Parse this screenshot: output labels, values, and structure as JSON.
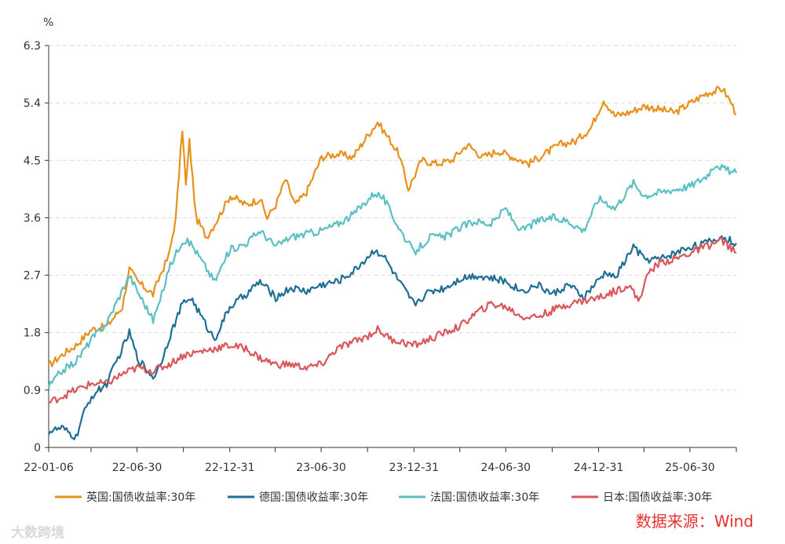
{
  "chart_data": {
    "type": "line",
    "unit_label": "%",
    "ylim": [
      0,
      6.3
    ],
    "y_ticks": [
      "0",
      "0.9",
      "1.8",
      "2.7",
      "3.6",
      "4.5",
      "5.4",
      "6.3"
    ],
    "x_ticks": [
      "22-01-06",
      "22-06-30",
      "22-12-31",
      "23-06-30",
      "23-12-31",
      "24-06-30",
      "24-12-31",
      "25-06-30"
    ],
    "x_start": "2022-01-06",
    "x_end": "2025-09-30",
    "grid": "horizontal-dashed",
    "legend_position": "bottom",
    "series": [
      {
        "name": "英国:国债收益率:30年",
        "color": "#E8901C",
        "points": [
          [
            "2022-01-06",
            1.28
          ],
          [
            "2022-02-01",
            1.45
          ],
          [
            "2022-03-01",
            1.6
          ],
          [
            "2022-04-01",
            1.85
          ],
          [
            "2022-05-01",
            1.9
          ],
          [
            "2022-06-01",
            2.2
          ],
          [
            "2022-06-15",
            2.8
          ],
          [
            "2022-07-01",
            2.6
          ],
          [
            "2022-08-01",
            2.4
          ],
          [
            "2022-08-15",
            2.7
          ],
          [
            "2022-09-01",
            3.0
          ],
          [
            "2022-09-15",
            3.6
          ],
          [
            "2022-09-28",
            5.0
          ],
          [
            "2022-10-05",
            4.1
          ],
          [
            "2022-10-12",
            4.8
          ],
          [
            "2022-10-25",
            3.6
          ],
          [
            "2022-11-15",
            3.3
          ],
          [
            "2022-12-01",
            3.5
          ],
          [
            "2022-12-15",
            3.7
          ],
          [
            "2023-01-01",
            3.95
          ],
          [
            "2023-02-01",
            3.8
          ],
          [
            "2023-03-01",
            3.9
          ],
          [
            "2023-03-15",
            3.6
          ],
          [
            "2023-04-01",
            3.8
          ],
          [
            "2023-04-20",
            4.2
          ],
          [
            "2023-05-10",
            3.8
          ],
          [
            "2023-06-01",
            4.0
          ],
          [
            "2023-07-01",
            4.55
          ],
          [
            "2023-08-01",
            4.6
          ],
          [
            "2023-09-01",
            4.55
          ],
          [
            "2023-10-01",
            4.9
          ],
          [
            "2023-10-20",
            5.1
          ],
          [
            "2023-11-15",
            4.8
          ],
          [
            "2023-12-01",
            4.6
          ],
          [
            "2023-12-20",
            4.05
          ],
          [
            "2024-01-15",
            4.5
          ],
          [
            "2024-02-15",
            4.45
          ],
          [
            "2024-03-15",
            4.5
          ],
          [
            "2024-04-15",
            4.75
          ],
          [
            "2024-05-15",
            4.55
          ],
          [
            "2024-06-15",
            4.65
          ],
          [
            "2024-07-15",
            4.55
          ],
          [
            "2024-08-15",
            4.45
          ],
          [
            "2024-09-15",
            4.6
          ],
          [
            "2024-10-15",
            4.75
          ],
          [
            "2024-11-15",
            4.8
          ],
          [
            "2024-12-15",
            5.0
          ],
          [
            "2025-01-10",
            5.45
          ],
          [
            "2025-02-01",
            5.2
          ],
          [
            "2025-03-01",
            5.25
          ],
          [
            "2025-04-01",
            5.35
          ],
          [
            "2025-05-01",
            5.3
          ],
          [
            "2025-06-01",
            5.25
          ],
          [
            "2025-07-01",
            5.4
          ],
          [
            "2025-08-01",
            5.55
          ],
          [
            "2025-09-03",
            5.62
          ],
          [
            "2025-09-20",
            5.4
          ],
          [
            "2025-09-30",
            5.22
          ]
        ]
      },
      {
        "name": "德国:国债收益率:30年",
        "color": "#1F6E95",
        "points": [
          [
            "2022-01-06",
            0.25
          ],
          [
            "2022-02-01",
            0.3
          ],
          [
            "2022-03-01",
            0.15
          ],
          [
            "2022-03-15",
            0.5
          ],
          [
            "2022-04-01",
            0.8
          ],
          [
            "2022-05-01",
            1.0
          ],
          [
            "2022-06-15",
            1.8
          ],
          [
            "2022-07-01",
            1.4
          ],
          [
            "2022-08-01",
            1.1
          ],
          [
            "2022-08-15",
            1.3
          ],
          [
            "2022-09-01",
            1.7
          ],
          [
            "2022-09-28",
            2.25
          ],
          [
            "2022-10-15",
            2.35
          ],
          [
            "2022-11-15",
            1.9
          ],
          [
            "2022-12-01",
            1.7
          ],
          [
            "2022-12-31",
            2.2
          ],
          [
            "2023-02-01",
            2.4
          ],
          [
            "2023-03-01",
            2.6
          ],
          [
            "2023-04-01",
            2.35
          ],
          [
            "2023-05-01",
            2.5
          ],
          [
            "2023-06-01",
            2.45
          ],
          [
            "2023-07-01",
            2.55
          ],
          [
            "2023-08-01",
            2.6
          ],
          [
            "2023-09-01",
            2.75
          ],
          [
            "2023-10-15",
            3.1
          ],
          [
            "2023-11-01",
            3.0
          ],
          [
            "2023-12-01",
            2.6
          ],
          [
            "2023-12-31",
            2.25
          ],
          [
            "2024-02-01",
            2.45
          ],
          [
            "2024-03-01",
            2.5
          ],
          [
            "2024-04-01",
            2.65
          ],
          [
            "2024-05-01",
            2.7
          ],
          [
            "2024-06-01",
            2.65
          ],
          [
            "2024-07-01",
            2.6
          ],
          [
            "2024-08-01",
            2.45
          ],
          [
            "2024-09-01",
            2.55
          ],
          [
            "2024-10-01",
            2.4
          ],
          [
            "2024-11-01",
            2.55
          ],
          [
            "2024-12-01",
            2.35
          ],
          [
            "2025-01-15",
            2.75
          ],
          [
            "2025-02-01",
            2.65
          ],
          [
            "2025-03-10",
            3.15
          ],
          [
            "2025-04-01",
            2.95
          ],
          [
            "2025-05-01",
            2.95
          ],
          [
            "2025-06-01",
            3.05
          ],
          [
            "2025-07-01",
            3.15
          ],
          [
            "2025-08-01",
            3.2
          ],
          [
            "2025-09-01",
            3.3
          ],
          [
            "2025-09-30",
            3.2
          ]
        ]
      },
      {
        "name": "法国:国债收益率:30年",
        "color": "#5BBFC4",
        "points": [
          [
            "2022-01-06",
            0.95
          ],
          [
            "2022-02-01",
            1.2
          ],
          [
            "2022-03-01",
            1.35
          ],
          [
            "2022-04-01",
            1.7
          ],
          [
            "2022-05-01",
            1.95
          ],
          [
            "2022-06-15",
            2.7
          ],
          [
            "2022-07-01",
            2.45
          ],
          [
            "2022-08-01",
            2.0
          ],
          [
            "2022-08-15",
            2.3
          ],
          [
            "2022-09-01",
            2.8
          ],
          [
            "2022-09-28",
            3.25
          ],
          [
            "2022-10-15",
            3.2
          ],
          [
            "2022-11-15",
            2.8
          ],
          [
            "2022-12-01",
            2.6
          ],
          [
            "2022-12-31",
            3.1
          ],
          [
            "2023-02-01",
            3.2
          ],
          [
            "2023-03-01",
            3.4
          ],
          [
            "2023-04-01",
            3.15
          ],
          [
            "2023-05-01",
            3.3
          ],
          [
            "2023-06-01",
            3.35
          ],
          [
            "2023-07-01",
            3.4
          ],
          [
            "2023-08-01",
            3.5
          ],
          [
            "2023-09-01",
            3.65
          ],
          [
            "2023-10-15",
            4.0
          ],
          [
            "2023-11-01",
            3.9
          ],
          [
            "2023-12-01",
            3.45
          ],
          [
            "2023-12-31",
            3.05
          ],
          [
            "2024-02-01",
            3.3
          ],
          [
            "2024-03-01",
            3.3
          ],
          [
            "2024-04-01",
            3.45
          ],
          [
            "2024-05-01",
            3.55
          ],
          [
            "2024-06-01",
            3.5
          ],
          [
            "2024-06-30",
            3.75
          ],
          [
            "2024-07-15",
            3.55
          ],
          [
            "2024-08-01",
            3.4
          ],
          [
            "2024-09-01",
            3.55
          ],
          [
            "2024-10-01",
            3.6
          ],
          [
            "2024-11-01",
            3.55
          ],
          [
            "2024-12-01",
            3.4
          ],
          [
            "2024-12-31",
            3.9
          ],
          [
            "2025-01-15",
            3.85
          ],
          [
            "2025-02-01",
            3.75
          ],
          [
            "2025-03-10",
            4.15
          ],
          [
            "2025-04-01",
            3.95
          ],
          [
            "2025-05-01",
            4.0
          ],
          [
            "2025-06-01",
            4.05
          ],
          [
            "2025-07-01",
            4.1
          ],
          [
            "2025-08-01",
            4.25
          ],
          [
            "2025-08-20",
            4.45
          ],
          [
            "2025-09-10",
            4.35
          ],
          [
            "2025-09-30",
            4.3
          ]
        ]
      },
      {
        "name": "日本:国债收益率:30年",
        "color": "#D9575A",
        "points": [
          [
            "2022-01-06",
            0.7
          ],
          [
            "2022-02-01",
            0.8
          ],
          [
            "2022-03-01",
            0.9
          ],
          [
            "2022-04-01",
            1.0
          ],
          [
            "2022-05-01",
            1.0
          ],
          [
            "2022-06-01",
            1.15
          ],
          [
            "2022-07-01",
            1.25
          ],
          [
            "2022-08-01",
            1.2
          ],
          [
            "2022-09-01",
            1.3
          ],
          [
            "2022-10-01",
            1.45
          ],
          [
            "2022-11-01",
            1.5
          ],
          [
            "2022-12-01",
            1.55
          ],
          [
            "2022-12-31",
            1.6
          ],
          [
            "2023-02-01",
            1.55
          ],
          [
            "2023-03-01",
            1.4
          ],
          [
            "2023-04-01",
            1.3
          ],
          [
            "2023-05-01",
            1.3
          ],
          [
            "2023-06-01",
            1.25
          ],
          [
            "2023-07-01",
            1.3
          ],
          [
            "2023-08-01",
            1.55
          ],
          [
            "2023-09-01",
            1.65
          ],
          [
            "2023-10-01",
            1.75
          ],
          [
            "2023-10-20",
            1.85
          ],
          [
            "2023-11-15",
            1.7
          ],
          [
            "2023-12-31",
            1.6
          ],
          [
            "2024-02-01",
            1.7
          ],
          [
            "2024-03-01",
            1.8
          ],
          [
            "2024-04-01",
            1.9
          ],
          [
            "2024-05-01",
            2.1
          ],
          [
            "2024-06-01",
            2.25
          ],
          [
            "2024-07-01",
            2.2
          ],
          [
            "2024-08-01",
            2.05
          ],
          [
            "2024-09-01",
            2.05
          ],
          [
            "2024-10-01",
            2.15
          ],
          [
            "2024-11-01",
            2.25
          ],
          [
            "2024-12-01",
            2.3
          ],
          [
            "2025-01-01",
            2.35
          ],
          [
            "2025-02-01",
            2.45
          ],
          [
            "2025-03-01",
            2.55
          ],
          [
            "2025-03-20",
            2.3
          ],
          [
            "2025-04-10",
            2.75
          ],
          [
            "2025-05-01",
            2.9
          ],
          [
            "2025-06-01",
            2.95
          ],
          [
            "2025-07-01",
            3.05
          ],
          [
            "2025-08-01",
            3.15
          ],
          [
            "2025-09-01",
            3.25
          ],
          [
            "2025-09-30",
            3.05
          ]
        ]
      }
    ]
  },
  "source_text": "数据来源：Wind",
  "watermark_text": "大数跨境"
}
